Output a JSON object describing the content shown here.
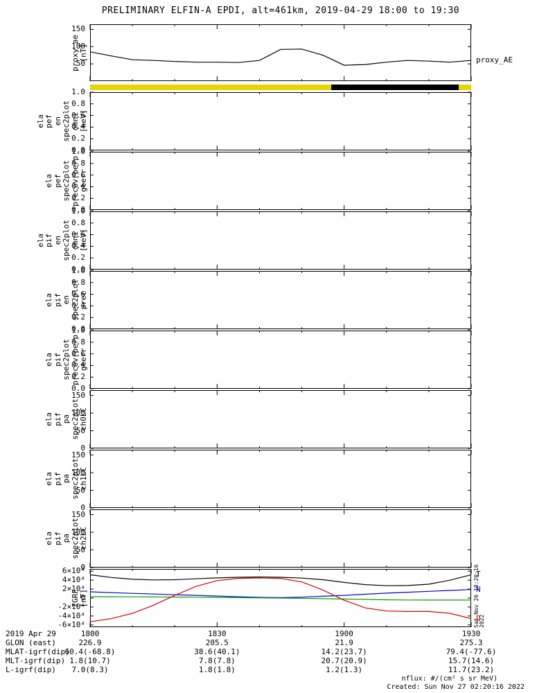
{
  "title": "PRELIMINARY ELFIN-A EPDI, alt=461km, 2019-04-29 18:00 to 19:30",
  "watermark": "Sat Nov 26 18:20:16 2022",
  "footer": {
    "nflux": "nflux: #/(cm² s sr MeV)",
    "created": "Created: Sun Nov 27 02:20:16 2022"
  },
  "availability_bar": {
    "segments": [
      {
        "start": 0,
        "end": 57,
        "color": "#E8D400"
      },
      {
        "start": 57,
        "end": 87,
        "color": "#000000"
      },
      {
        "start": 87,
        "end": 90,
        "color": "#E8D400"
      }
    ]
  },
  "table": {
    "rows": [
      {
        "label": "2019 Apr 29",
        "values": [
          "1800",
          "1830",
          "1900",
          "1930"
        ]
      },
      {
        "label": "GLON (east)",
        "values": [
          "226.9",
          "205.5",
          "21.9",
          "275.3"
        ]
      },
      {
        "label": "MLAT-igrf(dip)",
        "values": [
          "60.4(-68.8)",
          "38.6(40.1)",
          "14.2(23.7)",
          "79.4(-77.6)"
        ]
      },
      {
        "label": "MLT-igrf(dip)",
        "values": [
          "1.8(10.7)",
          "7.8(7.8)",
          "20.7(20.9)",
          "15.7(14.6)"
        ]
      },
      {
        "label": "L-igrf(dip)",
        "values": [
          "7.0(8.3)",
          "1.8(1.8)",
          "1.2(1.3)",
          "11.7(23.2)"
        ]
      }
    ]
  },
  "chart_data": [
    {
      "name": "proxy_ae",
      "type": "line",
      "ylabel": [
        "proxy_ae",
        "[nT]"
      ],
      "yrange": [
        0,
        165
      ],
      "yticks": [
        {
          "v": 50,
          "label": "50"
        },
        {
          "v": 100,
          "label": "100"
        },
        {
          "v": 150,
          "label": "150"
        }
      ],
      "x": [
        0,
        5,
        10,
        15,
        20,
        25,
        30,
        35,
        40,
        45,
        50,
        55,
        60,
        65,
        70,
        75,
        80,
        85,
        90
      ],
      "xlabel_ticks": [
        "1800",
        "1830",
        "1900",
        "1930"
      ],
      "series": [
        {
          "name": "proxy_AE",
          "color": "#000000",
          "label": "proxy_AE",
          "values": [
            85,
            73,
            62,
            60,
            57,
            55,
            55,
            54,
            60,
            92,
            93,
            75,
            46,
            48,
            55,
            60,
            58,
            55,
            60
          ]
        }
      ]
    },
    {
      "name": "ela_pef_en_spec2plot_omni",
      "type": "spectrogram",
      "ylabel": [
        "ela",
        "pef",
        "en",
        "spec2plot",
        "omni",
        "[keV]"
      ],
      "yrange": [
        0,
        1
      ],
      "yticks": [
        {
          "v": 0,
          "label": "0.0"
        },
        {
          "v": 0.2,
          "label": "0.2"
        },
        {
          "v": 0.4,
          "label": "0.4"
        },
        {
          "v": 0.6,
          "label": "0.6"
        },
        {
          "v": 0.8,
          "label": "0.8"
        },
        {
          "v": 1,
          "label": "1.0"
        }
      ],
      "series": []
    },
    {
      "name": "ela_pef_spec2plot_precovrperp_gterr",
      "type": "spectrogram",
      "ylabel": [
        "ela",
        "pef",
        "spec2plot",
        "precovrperp",
        "gterr"
      ],
      "yrange": [
        0,
        1
      ],
      "yticks": [
        {
          "v": 0,
          "label": "0.0"
        },
        {
          "v": 0.2,
          "label": "0.2"
        },
        {
          "v": 0.4,
          "label": "0.4"
        },
        {
          "v": 0.6,
          "label": "0.6"
        },
        {
          "v": 0.8,
          "label": "0.8"
        },
        {
          "v": 1,
          "label": "1.0"
        }
      ],
      "series": []
    },
    {
      "name": "ela_pif_en_spec2plot_omni",
      "type": "spectrogram",
      "ylabel": [
        "ela",
        "pif",
        "en",
        "spec2plot",
        "omni",
        "[keV]"
      ],
      "yrange": [
        0,
        1
      ],
      "yticks": [
        {
          "v": 0,
          "label": "0.0"
        },
        {
          "v": 0.2,
          "label": "0.2"
        },
        {
          "v": 0.4,
          "label": "0.4"
        },
        {
          "v": 0.6,
          "label": "0.6"
        },
        {
          "v": 0.8,
          "label": "0.8"
        },
        {
          "v": 1,
          "label": "1.0"
        }
      ],
      "series": []
    },
    {
      "name": "ela_pif_en_spec2plot_prec",
      "type": "spectrogram",
      "ylabel": [
        "ela",
        "pif",
        "en",
        "spec2plot",
        "prec"
      ],
      "yrange": [
        0,
        1
      ],
      "yticks": [
        {
          "v": 0,
          "label": "0.0"
        },
        {
          "v": 0.2,
          "label": "0.2"
        },
        {
          "v": 0.4,
          "label": "0.4"
        },
        {
          "v": 0.6,
          "label": "0.6"
        },
        {
          "v": 0.8,
          "label": "0.8"
        },
        {
          "v": 1,
          "label": "1.0"
        }
      ],
      "series": []
    },
    {
      "name": "ela_pif_spec2plot_precovrperp_gterr",
      "type": "spectrogram",
      "ylabel": [
        "ela",
        "pif",
        "spec2plot",
        "precovrperp",
        "gterr"
      ],
      "yrange": [
        0,
        1
      ],
      "yticks": [
        {
          "v": 0,
          "label": "0.0"
        },
        {
          "v": 0.2,
          "label": "0.2"
        },
        {
          "v": 0.4,
          "label": "0.4"
        },
        {
          "v": 0.6,
          "label": "0.6"
        },
        {
          "v": 0.8,
          "label": "0.8"
        },
        {
          "v": 1,
          "label": "1.0"
        }
      ],
      "series": []
    },
    {
      "name": "ela_pif_pa_spec2plot_ch0LC",
      "type": "spectrogram",
      "ylabel": [
        "ela",
        "pif",
        "pa",
        "spec2plot",
        "ch0LC"
      ],
      "yrange": [
        0,
        165
      ],
      "yticks": [
        {
          "v": 0,
          "label": "0"
        },
        {
          "v": 50,
          "label": "50"
        },
        {
          "v": 100,
          "label": "100"
        },
        {
          "v": 150,
          "label": "150"
        }
      ],
      "series": []
    },
    {
      "name": "ela_pif_pa_spec2plot_ch1LC",
      "type": "spectrogram",
      "ylabel": [
        "ela",
        "pif",
        "pa",
        "spec2plot",
        "ch1LC"
      ],
      "yrange": [
        0,
        165
      ],
      "yticks": [
        {
          "v": 0,
          "label": "0"
        },
        {
          "v": 50,
          "label": "50"
        },
        {
          "v": 100,
          "label": "100"
        },
        {
          "v": 150,
          "label": "150"
        }
      ],
      "series": []
    },
    {
      "name": "ela_pif_pa_spec2plot_ch2LC",
      "type": "spectrogram",
      "ylabel": [
        "ela",
        "pif",
        "pa",
        "spec2plot",
        "ch2LC"
      ],
      "yrange": [
        0,
        165
      ],
      "yticks": [
        {
          "v": 0,
          "label": "0"
        },
        {
          "v": 50,
          "label": "50"
        },
        {
          "v": 100,
          "label": "100"
        },
        {
          "v": 150,
          "label": "150"
        }
      ],
      "series": []
    },
    {
      "name": "igrf",
      "type": "line",
      "ylabel": [
        "IGRF",
        "[nT]"
      ],
      "yrange": [
        -65000,
        65000
      ],
      "yticks": [
        {
          "v": 60000,
          "label": "6×10⁴"
        },
        {
          "v": 40000,
          "label": "4×10⁴"
        },
        {
          "v": 20000,
          "label": "2×10⁴"
        },
        {
          "v": 0,
          "label": "0"
        },
        {
          "v": -20000,
          "label": "-2×10⁴"
        },
        {
          "v": -40000,
          "label": "-4×10⁴"
        },
        {
          "v": -60000,
          "label": "-6×10⁴"
        }
      ],
      "x": [
        0,
        5,
        10,
        15,
        20,
        25,
        30,
        35,
        40,
        45,
        50,
        55,
        60,
        65,
        70,
        75,
        80,
        85,
        90
      ],
      "series": [
        {
          "name": "T",
          "color": "#000000",
          "label": "T",
          "values": [
            52000,
            46000,
            42000,
            40500,
            41000,
            43000,
            45000,
            46500,
            47000,
            46500,
            44500,
            41000,
            35000,
            30000,
            27500,
            28000,
            31000,
            40000,
            52000
          ]
        },
        {
          "name": "N",
          "color": "#0000D0",
          "label": "N",
          "values": [
            14000,
            12000,
            10500,
            9000,
            7500,
            6000,
            4500,
            3000,
            1500,
            1000,
            2000,
            4000,
            6000,
            8500,
            11000,
            13000,
            15000,
            17000,
            19000
          ]
        },
        {
          "name": "E",
          "color": "#00A000",
          "label": "",
          "values": [
            3000,
            3000,
            2800,
            2500,
            2200,
            1800,
            1400,
            1000,
            500,
            0,
            -600,
            -1400,
            -2200,
            -3000,
            -3800,
            -4300,
            -4500,
            -4500,
            -4500
          ]
        },
        {
          "name": "D",
          "color": "#D00000",
          "label": "D",
          "values": [
            -53000,
            -46000,
            -34000,
            -16000,
            6000,
            26000,
            39000,
            44000,
            45000,
            44000,
            36000,
            18000,
            -5000,
            -22000,
            -29000,
            -30000,
            -30000,
            -34000,
            -46000
          ]
        }
      ]
    }
  ]
}
